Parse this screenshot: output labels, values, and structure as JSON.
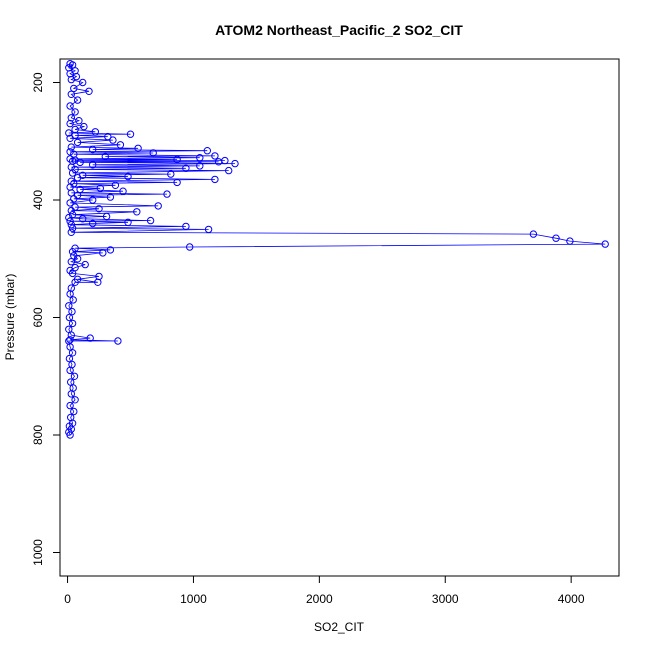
{
  "chart_data": {
    "type": "scatter",
    "title": "ATOM2 Northeast_Pacific_2 SO2_CIT",
    "xlabel": "SO2_CIT",
    "ylabel": "Pressure (mbar)",
    "xlim": [
      -60,
      4380
    ],
    "ylim": [
      1040,
      160
    ],
    "y_reversed": true,
    "x_ticks": [
      0,
      1000,
      2000,
      3000,
      4000
    ],
    "x_tick_labels": [
      "0",
      "1000",
      "2000",
      "3000",
      "4000"
    ],
    "y_ticks": [
      200,
      400,
      600,
      800,
      1000
    ],
    "y_tick_labels": [
      "200",
      "400",
      "600",
      "800",
      "1000"
    ],
    "grid": false,
    "legend": "none",
    "series_style": "line with open circle markers",
    "color": "#0000ff",
    "series": [
      {
        "points": [
          [
            20,
            800
          ],
          [
            10,
            795
          ],
          [
            30,
            790
          ],
          [
            15,
            785
          ],
          [
            40,
            780
          ],
          [
            25,
            770
          ],
          [
            50,
            760
          ],
          [
            20,
            750
          ],
          [
            60,
            740
          ],
          [
            30,
            730
          ],
          [
            45,
            720
          ],
          [
            25,
            710
          ],
          [
            55,
            700
          ],
          [
            20,
            690
          ],
          [
            35,
            680
          ],
          [
            15,
            670
          ],
          [
            40,
            660
          ],
          [
            20,
            650
          ],
          [
            10,
            640
          ],
          [
            400,
            640
          ],
          [
            20,
            638
          ],
          [
            180,
            635
          ],
          [
            30,
            630
          ],
          [
            10,
            620
          ],
          [
            40,
            610
          ],
          [
            15,
            600
          ],
          [
            35,
            590
          ],
          [
            10,
            580
          ],
          [
            45,
            570
          ],
          [
            20,
            560
          ],
          [
            30,
            550
          ],
          [
            60,
            540
          ],
          [
            240,
            540
          ],
          [
            80,
            535
          ],
          [
            250,
            530
          ],
          [
            40,
            525
          ],
          [
            20,
            520
          ],
          [
            60,
            515
          ],
          [
            140,
            510
          ],
          [
            30,
            505
          ],
          [
            80,
            500
          ],
          [
            50,
            495
          ],
          [
            280,
            490
          ],
          [
            40,
            488
          ],
          [
            340,
            485
          ],
          [
            60,
            482
          ],
          [
            970,
            480
          ],
          [
            4270,
            475
          ],
          [
            3990,
            470
          ],
          [
            3880,
            465
          ],
          [
            3700,
            458
          ],
          [
            30,
            455
          ],
          [
            1120,
            450
          ],
          [
            40,
            448
          ],
          [
            940,
            445
          ],
          [
            30,
            442
          ],
          [
            200,
            440
          ],
          [
            480,
            438
          ],
          [
            20,
            436
          ],
          [
            660,
            435
          ],
          [
            120,
            432
          ],
          [
            10,
            430
          ],
          [
            310,
            428
          ],
          [
            40,
            425
          ],
          [
            550,
            420
          ],
          [
            30,
            418
          ],
          [
            250,
            415
          ],
          [
            60,
            412
          ],
          [
            720,
            410
          ],
          [
            20,
            405
          ],
          [
            200,
            400
          ],
          [
            50,
            398
          ],
          [
            340,
            395
          ],
          [
            80,
            392
          ],
          [
            790,
            390
          ],
          [
            30,
            388
          ],
          [
            440,
            385
          ],
          [
            100,
            382
          ],
          [
            260,
            380
          ],
          [
            20,
            378
          ],
          [
            380,
            375
          ],
          [
            50,
            372
          ],
          [
            870,
            370
          ],
          [
            30,
            368
          ],
          [
            1170,
            365
          ],
          [
            80,
            362
          ],
          [
            480,
            360
          ],
          [
            120,
            358
          ],
          [
            820,
            356
          ],
          [
            40,
            354
          ],
          [
            1280,
            350
          ],
          [
            60,
            348
          ],
          [
            940,
            346
          ],
          [
            30,
            344
          ],
          [
            1050,
            342
          ],
          [
            200,
            340
          ],
          [
            1330,
            338
          ],
          [
            100,
            336
          ],
          [
            1200,
            335
          ],
          [
            40,
            334
          ],
          [
            1250,
            333
          ],
          [
            60,
            332
          ],
          [
            870,
            331
          ],
          [
            20,
            330
          ],
          [
            1050,
            328
          ],
          [
            300,
            326
          ],
          [
            1170,
            325
          ],
          [
            50,
            322
          ],
          [
            680,
            320
          ],
          [
            20,
            318
          ],
          [
            1110,
            316
          ],
          [
            200,
            314
          ],
          [
            560,
            312
          ],
          [
            30,
            310
          ],
          [
            420,
            306
          ],
          [
            80,
            302
          ],
          [
            360,
            298
          ],
          [
            20,
            295
          ],
          [
            320,
            292
          ],
          [
            60,
            290
          ],
          [
            500,
            288
          ],
          [
            10,
            286
          ],
          [
            220,
            284
          ],
          [
            60,
            280
          ],
          [
            130,
            275
          ],
          [
            20,
            270
          ],
          [
            90,
            265
          ],
          [
            30,
            260
          ],
          [
            60,
            250
          ],
          [
            20,
            240
          ],
          [
            80,
            230
          ],
          [
            30,
            220
          ],
          [
            170,
            215
          ],
          [
            50,
            210
          ],
          [
            120,
            200
          ],
          [
            30,
            195
          ],
          [
            70,
            190
          ],
          [
            20,
            185
          ],
          [
            60,
            180
          ],
          [
            10,
            175
          ],
          [
            40,
            170
          ],
          [
            20,
            168
          ]
        ]
      }
    ]
  }
}
